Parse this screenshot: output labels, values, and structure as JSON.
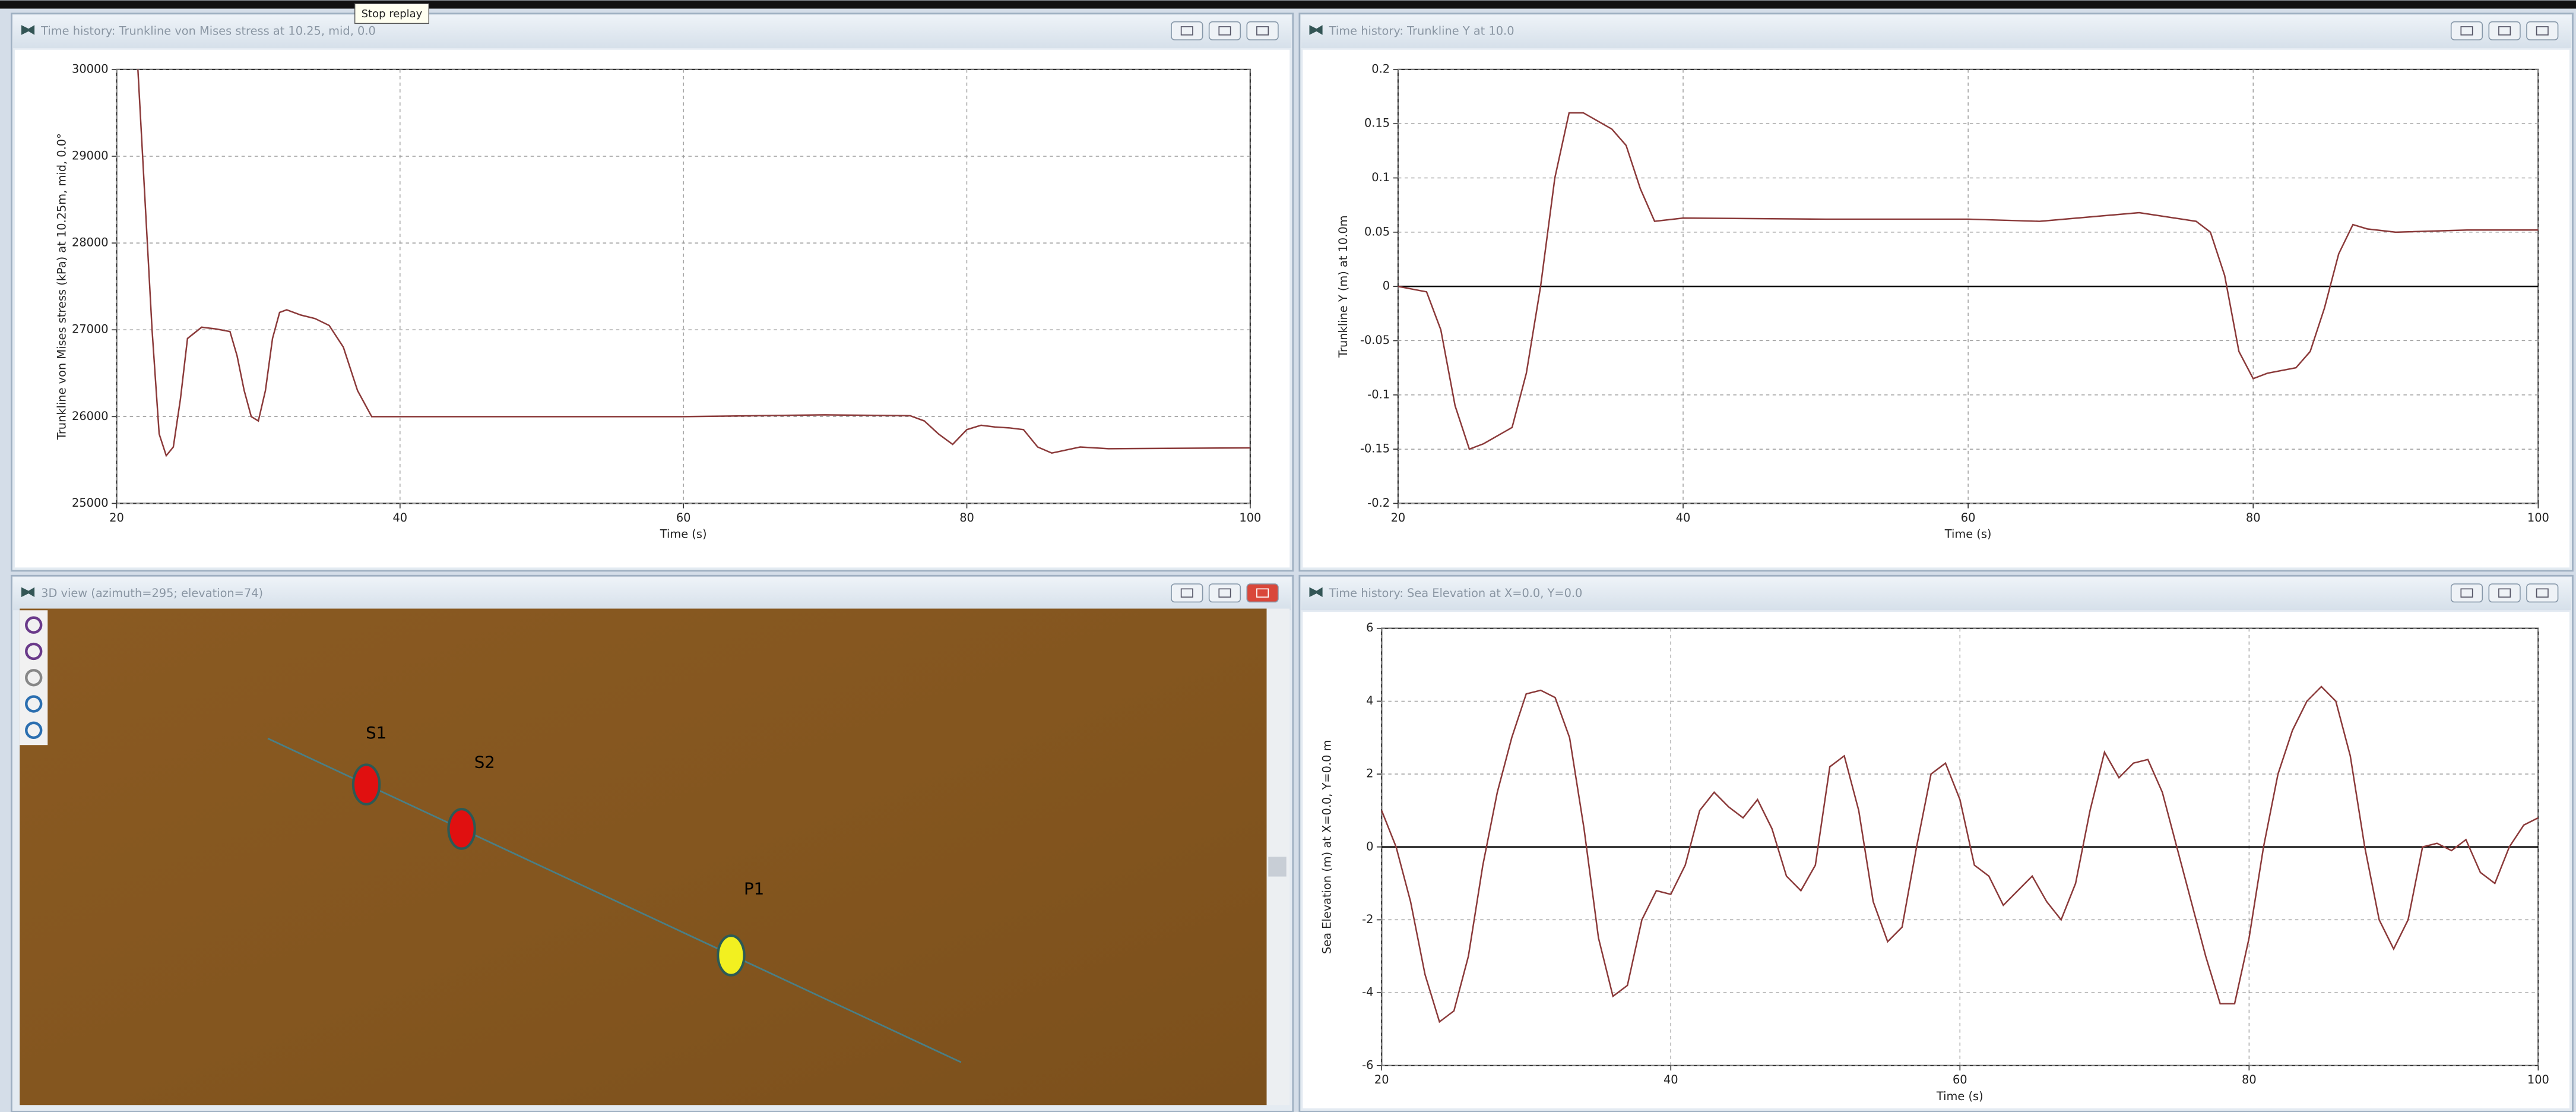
{
  "tooltip": "Stop replay",
  "chart_data": [
    {
      "type": "line",
      "title": "Time history: Trunkline von Mises stress at 10.25, mid, 0.0",
      "xlabel": "Time (s)",
      "ylabel": "Trunkline von Mises stress (kPa) at 10.25m, mid, 0.0°",
      "xlim": [
        20,
        100
      ],
      "xticks": [
        20,
        40,
        60,
        80,
        100
      ],
      "ylim": [
        25000,
        30000
      ],
      "yticks": [
        25000,
        26000,
        27000,
        28000,
        29000,
        30000
      ],
      "grid": true,
      "zero_line": false,
      "x": [
        21.5,
        22,
        22.5,
        23,
        23.5,
        24,
        24.5,
        25,
        26,
        27,
        28,
        28.5,
        29,
        29.5,
        30,
        30.5,
        31,
        31.5,
        32,
        33,
        34,
        35,
        36,
        37,
        38,
        40,
        50,
        60,
        70,
        76,
        77,
        78,
        79,
        80,
        81,
        82,
        83,
        84,
        85,
        86,
        88,
        90,
        100
      ],
      "series": [
        {
          "color": "#8b3a3a",
          "values": [
            30000,
            28500,
            27000,
            25800,
            25550,
            25650,
            26200,
            26900,
            27030,
            27010,
            26980,
            26700,
            26300,
            26000,
            25950,
            26300,
            26900,
            27200,
            27230,
            27170,
            27130,
            27050,
            26800,
            26300,
            26000,
            26000,
            26000,
            26000,
            26020,
            26010,
            25950,
            25800,
            25680,
            25850,
            25900,
            25880,
            25870,
            25850,
            25650,
            25580,
            25650,
            25630,
            25640
          ]
        }
      ]
    },
    {
      "type": "line",
      "title": "Time history: Trunkline Y at 10.0",
      "xlabel": "Time (s)",
      "ylabel": "Trunkline Y (m) at 10.0m",
      "xlim": [
        20,
        100
      ],
      "xticks": [
        20,
        40,
        60,
        80,
        100
      ],
      "ylim": [
        -0.2,
        0.2
      ],
      "yticks": [
        -0.2,
        -0.15,
        -0.1,
        -0.05,
        0,
        0.05,
        0.1,
        0.15,
        0.2
      ],
      "grid": true,
      "zero_line": true,
      "x": [
        20,
        22,
        23,
        24,
        25,
        26,
        28,
        29,
        30,
        31,
        32,
        33,
        35,
        36,
        37,
        38,
        40,
        50,
        60,
        65,
        72,
        76,
        77,
        78,
        79,
        80,
        81,
        83,
        84,
        85,
        86,
        87,
        88,
        90,
        95,
        100
      ],
      "series": [
        {
          "color": "#8b3a3a",
          "values": [
            0,
            -0.005,
            -0.04,
            -0.11,
            -0.15,
            -0.145,
            -0.13,
            -0.08,
            0,
            0.1,
            0.16,
            0.16,
            0.145,
            0.13,
            0.09,
            0.06,
            0.063,
            0.062,
            0.062,
            0.06,
            0.068,
            0.06,
            0.05,
            0.01,
            -0.06,
            -0.085,
            -0.08,
            -0.075,
            -0.06,
            -0.02,
            0.03,
            0.057,
            0.053,
            0.05,
            0.052,
            0.052
          ]
        }
      ]
    },
    {
      "type": "line",
      "title": "Time history: Sea Elevation at X=0.0, Y=0.0",
      "xlabel": "Time (s)",
      "ylabel": "Sea Elevation (m) at X=0.0, Y=0.0 m",
      "xlim": [
        20,
        100
      ],
      "xticks": [
        20,
        40,
        60,
        80,
        100
      ],
      "ylim": [
        -6,
        6
      ],
      "yticks": [
        -6,
        -4,
        -2,
        0,
        2,
        4,
        6
      ],
      "grid": true,
      "zero_line": true,
      "x": [
        20,
        21,
        22,
        23,
        24,
        25,
        26,
        27,
        28,
        29,
        30,
        31,
        32,
        33,
        34,
        35,
        36,
        37,
        38,
        39,
        40,
        41,
        42,
        43,
        44,
        45,
        46,
        47,
        48,
        49,
        50,
        51,
        52,
        53,
        54,
        55,
        56,
        57,
        58,
        59,
        60,
        61,
        62,
        63,
        64,
        65,
        66,
        67,
        68,
        69,
        70,
        71,
        72,
        73,
        74,
        75,
        76,
        77,
        78,
        79,
        80,
        81,
        82,
        83,
        84,
        85,
        86,
        87,
        88,
        89,
        90,
        91,
        92,
        93,
        94,
        95,
        96,
        97,
        98,
        99,
        100
      ],
      "series": [
        {
          "color": "#8b3a3a",
          "values": [
            1,
            0,
            -1.5,
            -3.5,
            -4.8,
            -4.5,
            -3,
            -0.5,
            1.5,
            3,
            4.2,
            4.3,
            4.1,
            3,
            0.5,
            -2.5,
            -4.1,
            -3.8,
            -2,
            -1.2,
            -1.3,
            -0.5,
            1,
            1.5,
            1.1,
            0.8,
            1.3,
            0.5,
            -0.8,
            -1.2,
            -0.5,
            2.2,
            2.5,
            1,
            -1.5,
            -2.6,
            -2.2,
            0,
            2,
            2.3,
            1.3,
            -0.5,
            -0.8,
            -1.6,
            -1.2,
            -0.8,
            -1.5,
            -2,
            -1,
            1,
            2.6,
            1.9,
            2.3,
            2.4,
            1.5,
            0,
            -1.5,
            -3,
            -4.3,
            -4.3,
            -2.5,
            0,
            2,
            3.2,
            4,
            4.4,
            4,
            2.5,
            0,
            -2,
            -2.8,
            -2,
            0,
            0.1,
            -0.1,
            0.2,
            -0.7,
            -1,
            0,
            0.6,
            0.8
          ]
        }
      ]
    }
  ],
  "view3d": {
    "title": "3D view (azimuth=295; elevation=74)",
    "markers": [
      "S1",
      "S2",
      "P1"
    ]
  }
}
